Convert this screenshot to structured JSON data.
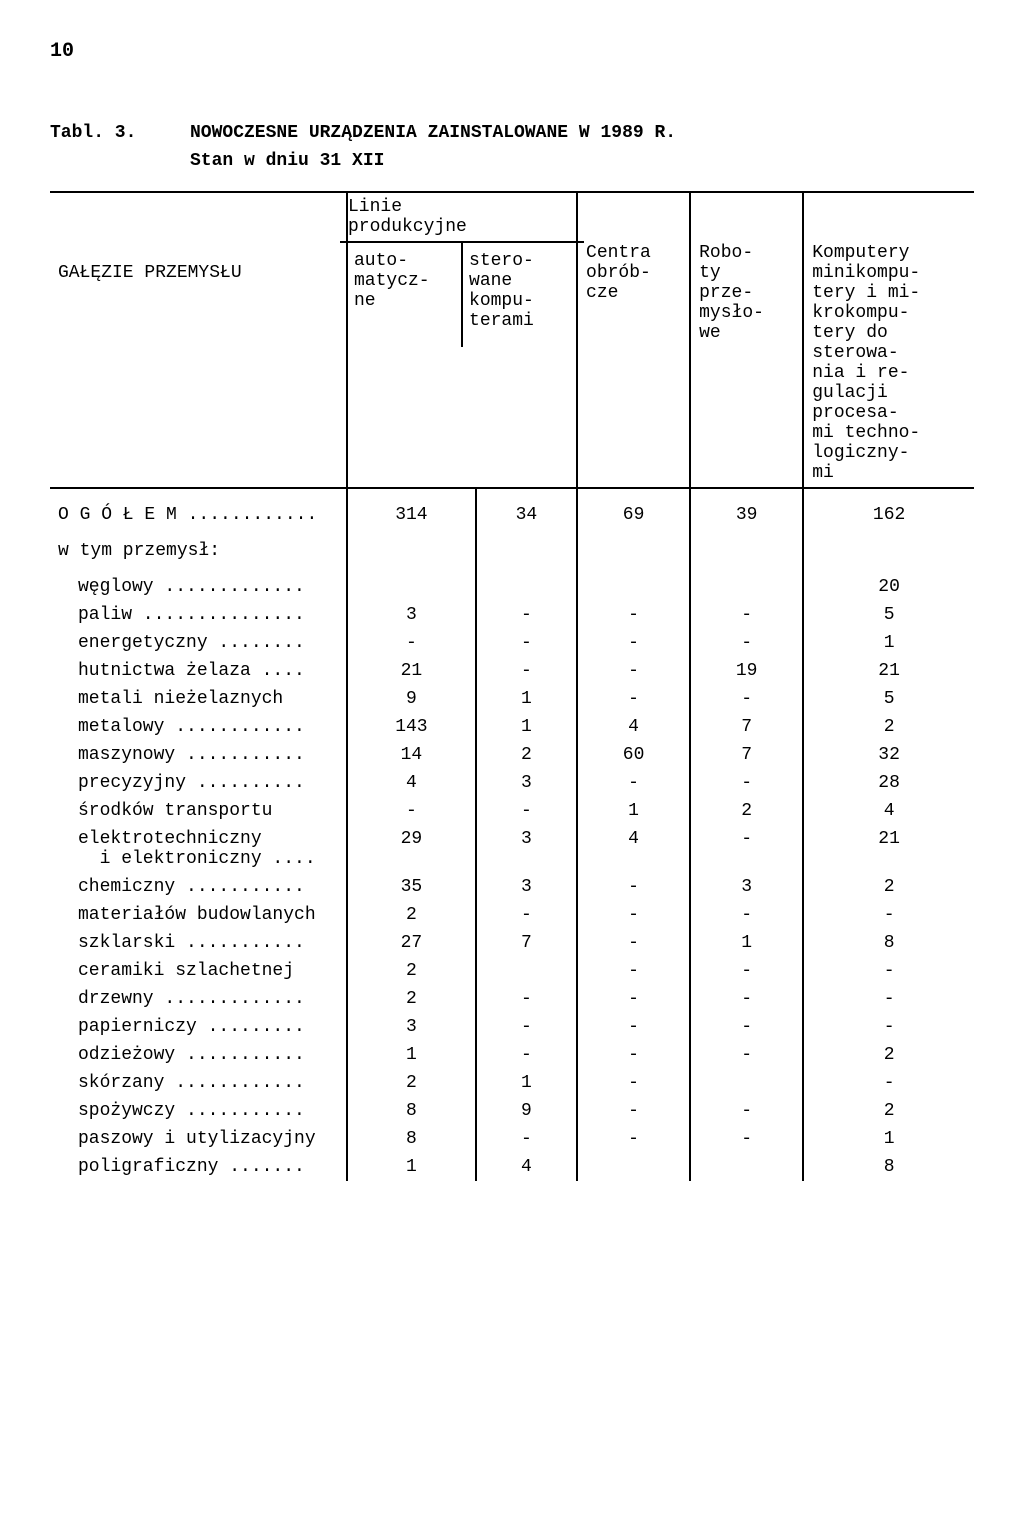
{
  "page_number": "10",
  "table_label": "Tabl. 3.",
  "table_title": "NOWOCZESNE URZĄDZENIA ZAINSTALOWANE W 1989 R.",
  "table_subtitle": "Stan w dniu 31 XII",
  "headers": {
    "col0": "GAŁĘZIE PRZEMYSŁU",
    "linie": "Linie\nprodukcyjne",
    "auto": "auto-\nmatycz-\nne",
    "stero": "stero-\nwane\nkompu-\nterami",
    "centra": "Centra\nobrób-\ncze",
    "roboty": "Robo-\nty\nprze-\nmysło-\nwe",
    "komputery": "Komputery\nminikompu-\ntery i mi-\nkrokompu-\ntery do\nsterowa-\nnia i re-\ngulacji\nprocesa-\nmi techno-\nlogiczny-\nmi"
  },
  "total_label": "O G Ó Ł E M ............",
  "total": [
    "314",
    "34",
    "69",
    "39",
    "162"
  ],
  "subhead": "w tym przemysł:",
  "rows": [
    {
      "label": "węglowy .............",
      "v": [
        "",
        "",
        "",
        "",
        "20"
      ]
    },
    {
      "label": "paliw ...............",
      "v": [
        "3",
        "-",
        "-",
        "-",
        "5"
      ]
    },
    {
      "label": "energetyczny ........",
      "v": [
        "-",
        "-",
        "-",
        "-",
        "1"
      ]
    },
    {
      "label": "hutnictwa żelaza ....",
      "v": [
        "21",
        "-",
        "-",
        "19",
        "21"
      ]
    },
    {
      "label": "metali nieżelaznych",
      "v": [
        "9",
        "1",
        "-",
        "-",
        "5"
      ]
    },
    {
      "label": "metalowy ............",
      "v": [
        "143",
        "1",
        "4",
        "7",
        "2"
      ]
    },
    {
      "label": "maszynowy ...........",
      "v": [
        "14",
        "2",
        "60",
        "7",
        "32"
      ]
    },
    {
      "label": "precyzyjny ..........",
      "v": [
        "4",
        "3",
        "-",
        "-",
        "28"
      ]
    },
    {
      "label": "środków transportu",
      "v": [
        "-",
        "-",
        "1",
        "2",
        "4"
      ]
    },
    {
      "label": "elektrotechniczny\n  i elektroniczny ....",
      "v": [
        "29",
        "3",
        "4",
        "-",
        "21"
      ]
    },
    {
      "label": "chemiczny ...........",
      "v": [
        "35",
        "3",
        "-",
        "3",
        "2"
      ]
    },
    {
      "label": "materiałów budowlanych",
      "v": [
        "2",
        "-",
        "-",
        "-",
        "-"
      ]
    },
    {
      "label": "szklarski ...........",
      "v": [
        "27",
        "7",
        "-",
        "1",
        "8"
      ]
    },
    {
      "label": "ceramiki szlachetnej",
      "v": [
        "2",
        "",
        "-",
        "-",
        "-"
      ]
    },
    {
      "label": "drzewny .............",
      "v": [
        "2",
        "-",
        "-",
        "-",
        "-"
      ]
    },
    {
      "label": "papierniczy .........",
      "v": [
        "3",
        "-",
        "-",
        "-",
        "-"
      ]
    },
    {
      "label": "odzieżowy ...........",
      "v": [
        "1",
        "-",
        "-",
        "-",
        "2"
      ]
    },
    {
      "label": "skórzany ............",
      "v": [
        "2",
        "1",
        "-",
        "",
        "-"
      ]
    },
    {
      "label": "spożywczy ...........",
      "v": [
        "8",
        "9",
        "-",
        "-",
        "2"
      ]
    },
    {
      "label": "paszowy i utylizacyjny",
      "v": [
        "8",
        "-",
        "-",
        "-",
        "1"
      ]
    },
    {
      "label": "poligraficzny .......",
      "v": [
        "1",
        "4",
        "",
        "",
        "8"
      ]
    }
  ]
}
